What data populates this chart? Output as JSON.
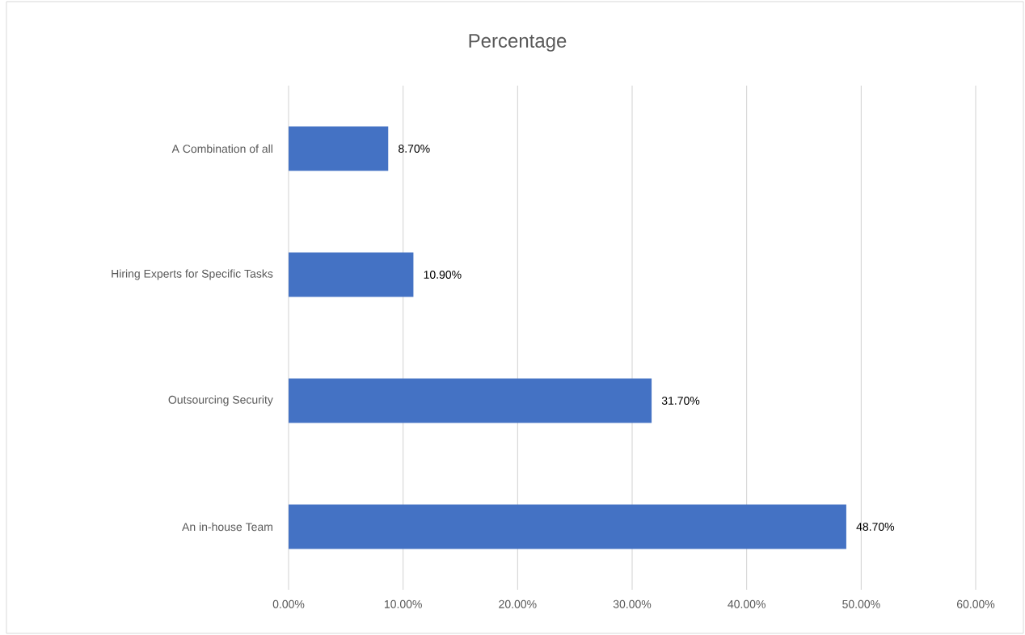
{
  "chart_data": {
    "type": "bar",
    "orientation": "horizontal",
    "title": "Percentage",
    "categories": [
      "A Combination of all",
      "Hiring Experts for Specific Tasks",
      "Outsourcing Security",
      "An in-house Team"
    ],
    "values": [
      8.7,
      10.9,
      31.7,
      48.7
    ],
    "value_labels": [
      "8.70%",
      "10.90%",
      "31.70%",
      "48.70%"
    ],
    "color": "#4472c4",
    "xlim": [
      0,
      60
    ],
    "xticks": [
      {
        "value": 0,
        "label": "0.00%"
      },
      {
        "value": 10,
        "label": "10.00%"
      },
      {
        "value": 20,
        "label": "20.00%"
      },
      {
        "value": 30,
        "label": "30.00%"
      },
      {
        "value": 40,
        "label": "40.00%"
      },
      {
        "value": 50,
        "label": "50.00%"
      },
      {
        "value": 60,
        "label": "60.00%"
      }
    ],
    "grid": "x"
  }
}
